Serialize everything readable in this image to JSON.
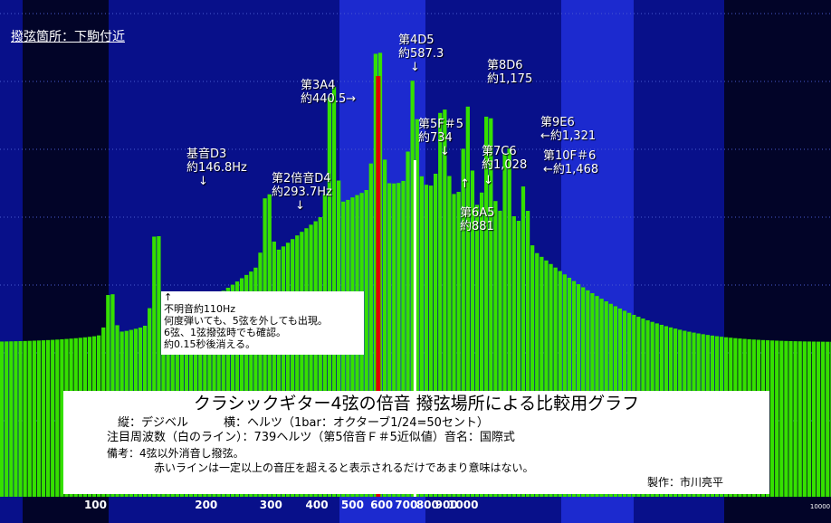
{
  "header": {
    "location": "撥弦箇所：下駒付近"
  },
  "colors": {
    "bar": "#35e000",
    "bar_edge": "#7dff40",
    "red_line": "#e00000",
    "white_line": "#ffffff",
    "band_dark": "#020428",
    "band_mid": "#08108a",
    "band_bright": "#1c2acf"
  },
  "chart_data": {
    "type": "bar",
    "title": "クラシックギター4弦の倍音 撥弦場所による比較用グラフ",
    "ylabel": "デジベル",
    "xlabel": "ヘルツ（1bar：オクターブ1/24=50セント）",
    "x_scale": "log",
    "xlim": [
      55,
      10000
    ],
    "x_ticks": [
      {
        "label": "100",
        "value": 100
      },
      {
        "label": "200",
        "value": 200
      },
      {
        "label": "300",
        "value": 300
      },
      {
        "label": "400",
        "value": 400
      },
      {
        "label": "500",
        "value": 500
      },
      {
        "label": "600",
        "value": 600
      },
      {
        "label": "700",
        "value": 700
      },
      {
        "label": "800",
        "value": 800
      },
      {
        "label": "900",
        "value": 900
      },
      {
        "label": "1000",
        "value": 1000
      },
      {
        "label": "10000",
        "value": 10000
      }
    ],
    "bars_per_octave": 24,
    "red_line_hz": 587.3,
    "white_line_hz": 739,
    "peaks": [
      {
        "name": "不明音",
        "hz": 110
      },
      {
        "name": "基音D3",
        "hz": 146.8
      },
      {
        "name": "第2倍音D4",
        "hz": 293.7
      },
      {
        "name": "第3A4",
        "hz": 440.5
      },
      {
        "name": "第4D5",
        "hz": 587.3
      },
      {
        "name": "第5F＃5",
        "hz": 734
      },
      {
        "name": "第6A5",
        "hz": 881
      },
      {
        "name": "第7C6",
        "hz": 1028
      },
      {
        "name": "第8D6",
        "hz": 1175
      },
      {
        "name": "第9E6",
        "hz": 1321
      },
      {
        "name": "第10F＃6",
        "hz": 1468
      }
    ],
    "annotations": {
      "a1": "基音D3\n約146.8Hz\n　↓",
      "a2": "第2倍音D4\n約293.7Hz\n　　↓",
      "a3": "第3A4\n約440.5→",
      "a4": "第4D5\n約587.3\n　↓",
      "a5": "第5F＃5\n約734",
      "a6": "第6A5\n約881",
      "a6_arrow": "↑",
      "a7": "第7C6\n約1,028",
      "a7_arrow": "↓",
      "a8": "第8D6\n約1,175",
      "a9": "第9E6\n←約1,321",
      "a10": "第10F＃6\n←約1,468"
    }
  },
  "note": {
    "arrow": "↑",
    "line1": "不明音約110Hz",
    "line2": "何度弾いても、5弦を外しても出現。",
    "line3": "6弦、1弦撥弦時でも確認。",
    "line4": "約0.15秒後消える。"
  },
  "info_box": {
    "title": "クラシックギター4弦の倍音 撥弦場所による比較用グラフ",
    "axes": "縦：デジベル　　　横：ヘルツ（1bar：オクターブ1/24=50セント）",
    "focus": "注目周波数（白のライン）：739ヘルツ（第5倍音Ｆ＃5近似値）音名：国際式",
    "remark1": "備考：4弦以外消音し撥弦。",
    "remark2": "赤いラインは一定以上の音圧を超えると表示されるだけであまり意味はない。",
    "credit": "製作：市川亮平"
  }
}
